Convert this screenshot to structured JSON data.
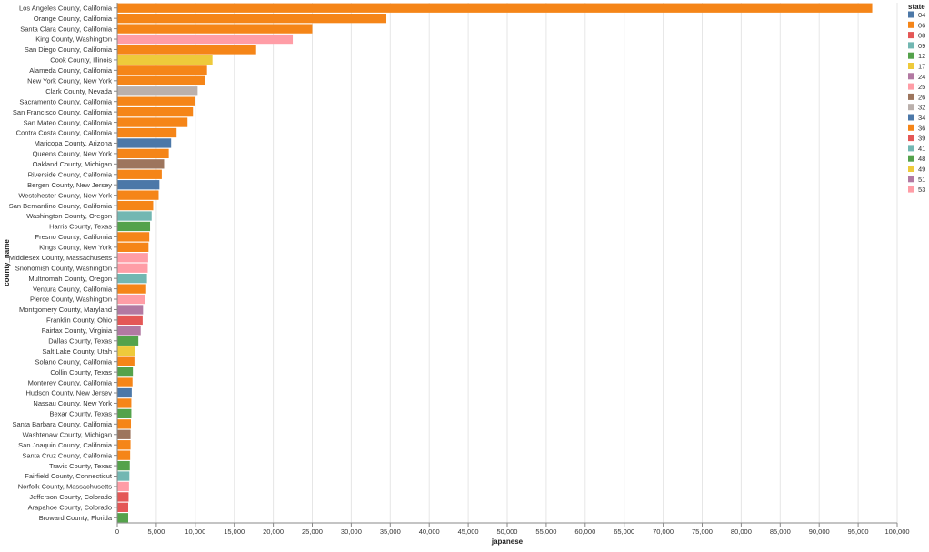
{
  "chart_data": {
    "type": "bar",
    "orientation": "horizontal",
    "xlabel": "japanese",
    "ylabel": "county_name",
    "xlim": [
      0,
      100000
    ],
    "x_ticks": [
      0,
      5000,
      10000,
      15000,
      20000,
      25000,
      30000,
      35000,
      40000,
      45000,
      50000,
      55000,
      60000,
      65000,
      70000,
      75000,
      80000,
      85000,
      90000,
      95000,
      100000
    ],
    "x_tick_labels": [
      "0",
      "5,000",
      "10,000",
      "15,000",
      "20,000",
      "25,000",
      "30,000",
      "35,000",
      "40,000",
      "45,000",
      "50,000",
      "55,000",
      "60,000",
      "65,000",
      "70,000",
      "75,000",
      "80,000",
      "85,000",
      "90,000",
      "95,000",
      "100,000"
    ],
    "grid": true,
    "legend": {
      "title": "state",
      "placement": "right",
      "entries": [
        {
          "label": "04",
          "color": "#4c78a8"
        },
        {
          "label": "06",
          "color": "#f58518"
        },
        {
          "label": "08",
          "color": "#e45756"
        },
        {
          "label": "09",
          "color": "#72b7b2"
        },
        {
          "label": "12",
          "color": "#54a24b"
        },
        {
          "label": "17",
          "color": "#eeca3b"
        },
        {
          "label": "24",
          "color": "#b279a2"
        },
        {
          "label": "25",
          "color": "#ff9da6"
        },
        {
          "label": "26",
          "color": "#9d755d"
        },
        {
          "label": "32",
          "color": "#bab0ac"
        },
        {
          "label": "34",
          "color": "#4c78a8"
        },
        {
          "label": "36",
          "color": "#f58518"
        },
        {
          "label": "39",
          "color": "#e45756"
        },
        {
          "label": "41",
          "color": "#72b7b2"
        },
        {
          "label": "48",
          "color": "#54a24b"
        },
        {
          "label": "49",
          "color": "#eeca3b"
        },
        {
          "label": "51",
          "color": "#b279a2"
        },
        {
          "label": "53",
          "color": "#ff9da6"
        }
      ]
    },
    "bars": [
      {
        "county": "Los Angeles County, California",
        "state": "06",
        "value": 96800
      },
      {
        "county": "Orange County, California",
        "state": "06",
        "value": 34500
      },
      {
        "county": "Santa Clara County, California",
        "state": "06",
        "value": 25000
      },
      {
        "county": "King County, Washington",
        "state": "53",
        "value": 22500
      },
      {
        "county": "San Diego County, California",
        "state": "06",
        "value": 17800
      },
      {
        "county": "Cook County, Illinois",
        "state": "17",
        "value": 12200
      },
      {
        "county": "Alameda County, California",
        "state": "06",
        "value": 11500
      },
      {
        "county": "New York County, New York",
        "state": "36",
        "value": 11300
      },
      {
        "county": "Clark County, Nevada",
        "state": "32",
        "value": 10300
      },
      {
        "county": "Sacramento County, California",
        "state": "06",
        "value": 10000
      },
      {
        "county": "San Francisco County, California",
        "state": "06",
        "value": 9700
      },
      {
        "county": "San Mateo County, California",
        "state": "06",
        "value": 9000
      },
      {
        "county": "Contra Costa County, California",
        "state": "06",
        "value": 7600
      },
      {
        "county": "Maricopa County, Arizona",
        "state": "04",
        "value": 6900
      },
      {
        "county": "Queens County, New York",
        "state": "36",
        "value": 6600
      },
      {
        "county": "Oakland County, Michigan",
        "state": "26",
        "value": 6000
      },
      {
        "county": "Riverside County, California",
        "state": "06",
        "value": 5700
      },
      {
        "county": "Bergen County, New Jersey",
        "state": "34",
        "value": 5400
      },
      {
        "county": "Westchester County, New York",
        "state": "36",
        "value": 5300
      },
      {
        "county": "San Bernardino County, California",
        "state": "06",
        "value": 4600
      },
      {
        "county": "Washington County, Oregon",
        "state": "41",
        "value": 4400
      },
      {
        "county": "Harris County, Texas",
        "state": "48",
        "value": 4200
      },
      {
        "county": "Fresno County, California",
        "state": "06",
        "value": 4100
      },
      {
        "county": "Kings County, New York",
        "state": "36",
        "value": 4000
      },
      {
        "county": "Middlesex County, Massachusetts",
        "state": "25",
        "value": 3950
      },
      {
        "county": "Snohomish County, Washington",
        "state": "53",
        "value": 3900
      },
      {
        "county": "Multnomah County, Oregon",
        "state": "41",
        "value": 3800
      },
      {
        "county": "Ventura County, California",
        "state": "06",
        "value": 3700
      },
      {
        "county": "Pierce County, Washington",
        "state": "53",
        "value": 3500
      },
      {
        "county": "Montgomery County, Maryland",
        "state": "24",
        "value": 3300
      },
      {
        "county": "Franklin County, Ohio",
        "state": "39",
        "value": 3250
      },
      {
        "county": "Fairfax County, Virginia",
        "state": "51",
        "value": 3000
      },
      {
        "county": "Dallas County, Texas",
        "state": "48",
        "value": 2700
      },
      {
        "county": "Salt Lake County, Utah",
        "state": "49",
        "value": 2300
      },
      {
        "county": "Solano County, California",
        "state": "06",
        "value": 2200
      },
      {
        "county": "Collin County, Texas",
        "state": "48",
        "value": 2000
      },
      {
        "county": "Monterey County, California",
        "state": "06",
        "value": 1950
      },
      {
        "county": "Hudson County, New Jersey",
        "state": "34",
        "value": 1850
      },
      {
        "county": "Nassau County, New York",
        "state": "36",
        "value": 1800
      },
      {
        "county": "Bexar County, Texas",
        "state": "48",
        "value": 1800
      },
      {
        "county": "Santa Barbara County, California",
        "state": "06",
        "value": 1750
      },
      {
        "county": "Washtenaw County, Michigan",
        "state": "26",
        "value": 1700
      },
      {
        "county": "San Joaquin County, California",
        "state": "06",
        "value": 1700
      },
      {
        "county": "Santa Cruz County, California",
        "state": "06",
        "value": 1650
      },
      {
        "county": "Travis County, Texas",
        "state": "48",
        "value": 1600
      },
      {
        "county": "Fairfield County, Connecticut",
        "state": "09",
        "value": 1550
      },
      {
        "county": "Norfolk County, Massachusetts",
        "state": "25",
        "value": 1500
      },
      {
        "county": "Jefferson County, Colorado",
        "state": "08",
        "value": 1450
      },
      {
        "county": "Arapahoe County, Colorado",
        "state": "08",
        "value": 1400
      },
      {
        "county": "Broward County, Florida",
        "state": "12",
        "value": 1400
      }
    ]
  }
}
